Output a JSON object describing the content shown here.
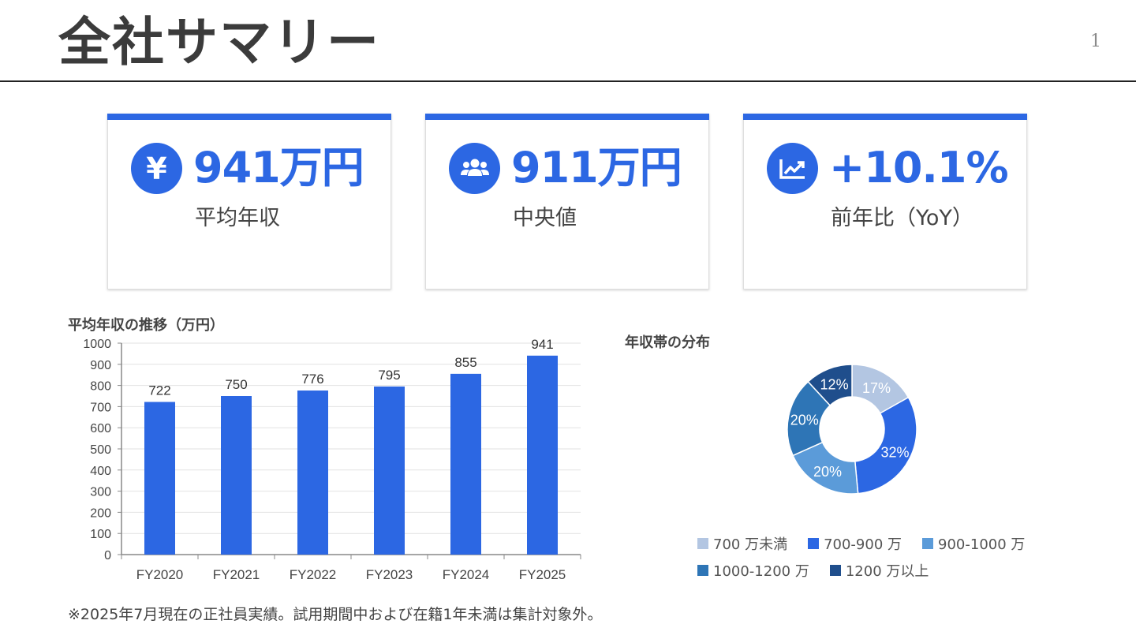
{
  "header": {
    "title": "全社サマリー",
    "page_number": "1"
  },
  "theme": {
    "accent": "#2c67e3"
  },
  "kpis": [
    {
      "icon": "yen-icon",
      "value": "941万円",
      "label": "平均年収"
    },
    {
      "icon": "users-icon",
      "value": "911万円",
      "label": "中央値"
    },
    {
      "icon": "trend-chart-icon",
      "value": "+10.1%",
      "label": "前年比（YoY）"
    }
  ],
  "chart_data": [
    {
      "type": "bar",
      "title": "平均年収の推移（万円）",
      "categories": [
        "FY2020",
        "FY2021",
        "FY2022",
        "FY2023",
        "FY2024",
        "FY2025"
      ],
      "values": [
        722,
        750,
        776,
        795,
        855,
        941
      ],
      "ylim": [
        0,
        1000
      ],
      "yticks": [
        "0",
        "100",
        "200",
        "300",
        "400",
        "500",
        "600",
        "700",
        "800",
        "900",
        "1000"
      ],
      "grid": true,
      "color": "#2c67e3"
    },
    {
      "type": "pie",
      "style": "donut",
      "title": "年収帯の分布",
      "categories": [
        "700 万未満",
        "700-900 万",
        "900-1000 万",
        "1000-1200 万",
        "1200 万以上"
      ],
      "values": [
        17,
        32,
        20,
        20,
        12
      ],
      "labels": [
        "17%",
        "32%",
        "20%",
        "20%",
        "12%"
      ],
      "colors": [
        "#b3c6e2",
        "#2c67e3",
        "#5b9bd9",
        "#2e75b6",
        "#1f4e8c"
      ],
      "legend": "bottom"
    }
  ],
  "footnote": "※2025年7月現在の正社員実績。試用期間中および在籍1年未満は集計対象外。"
}
